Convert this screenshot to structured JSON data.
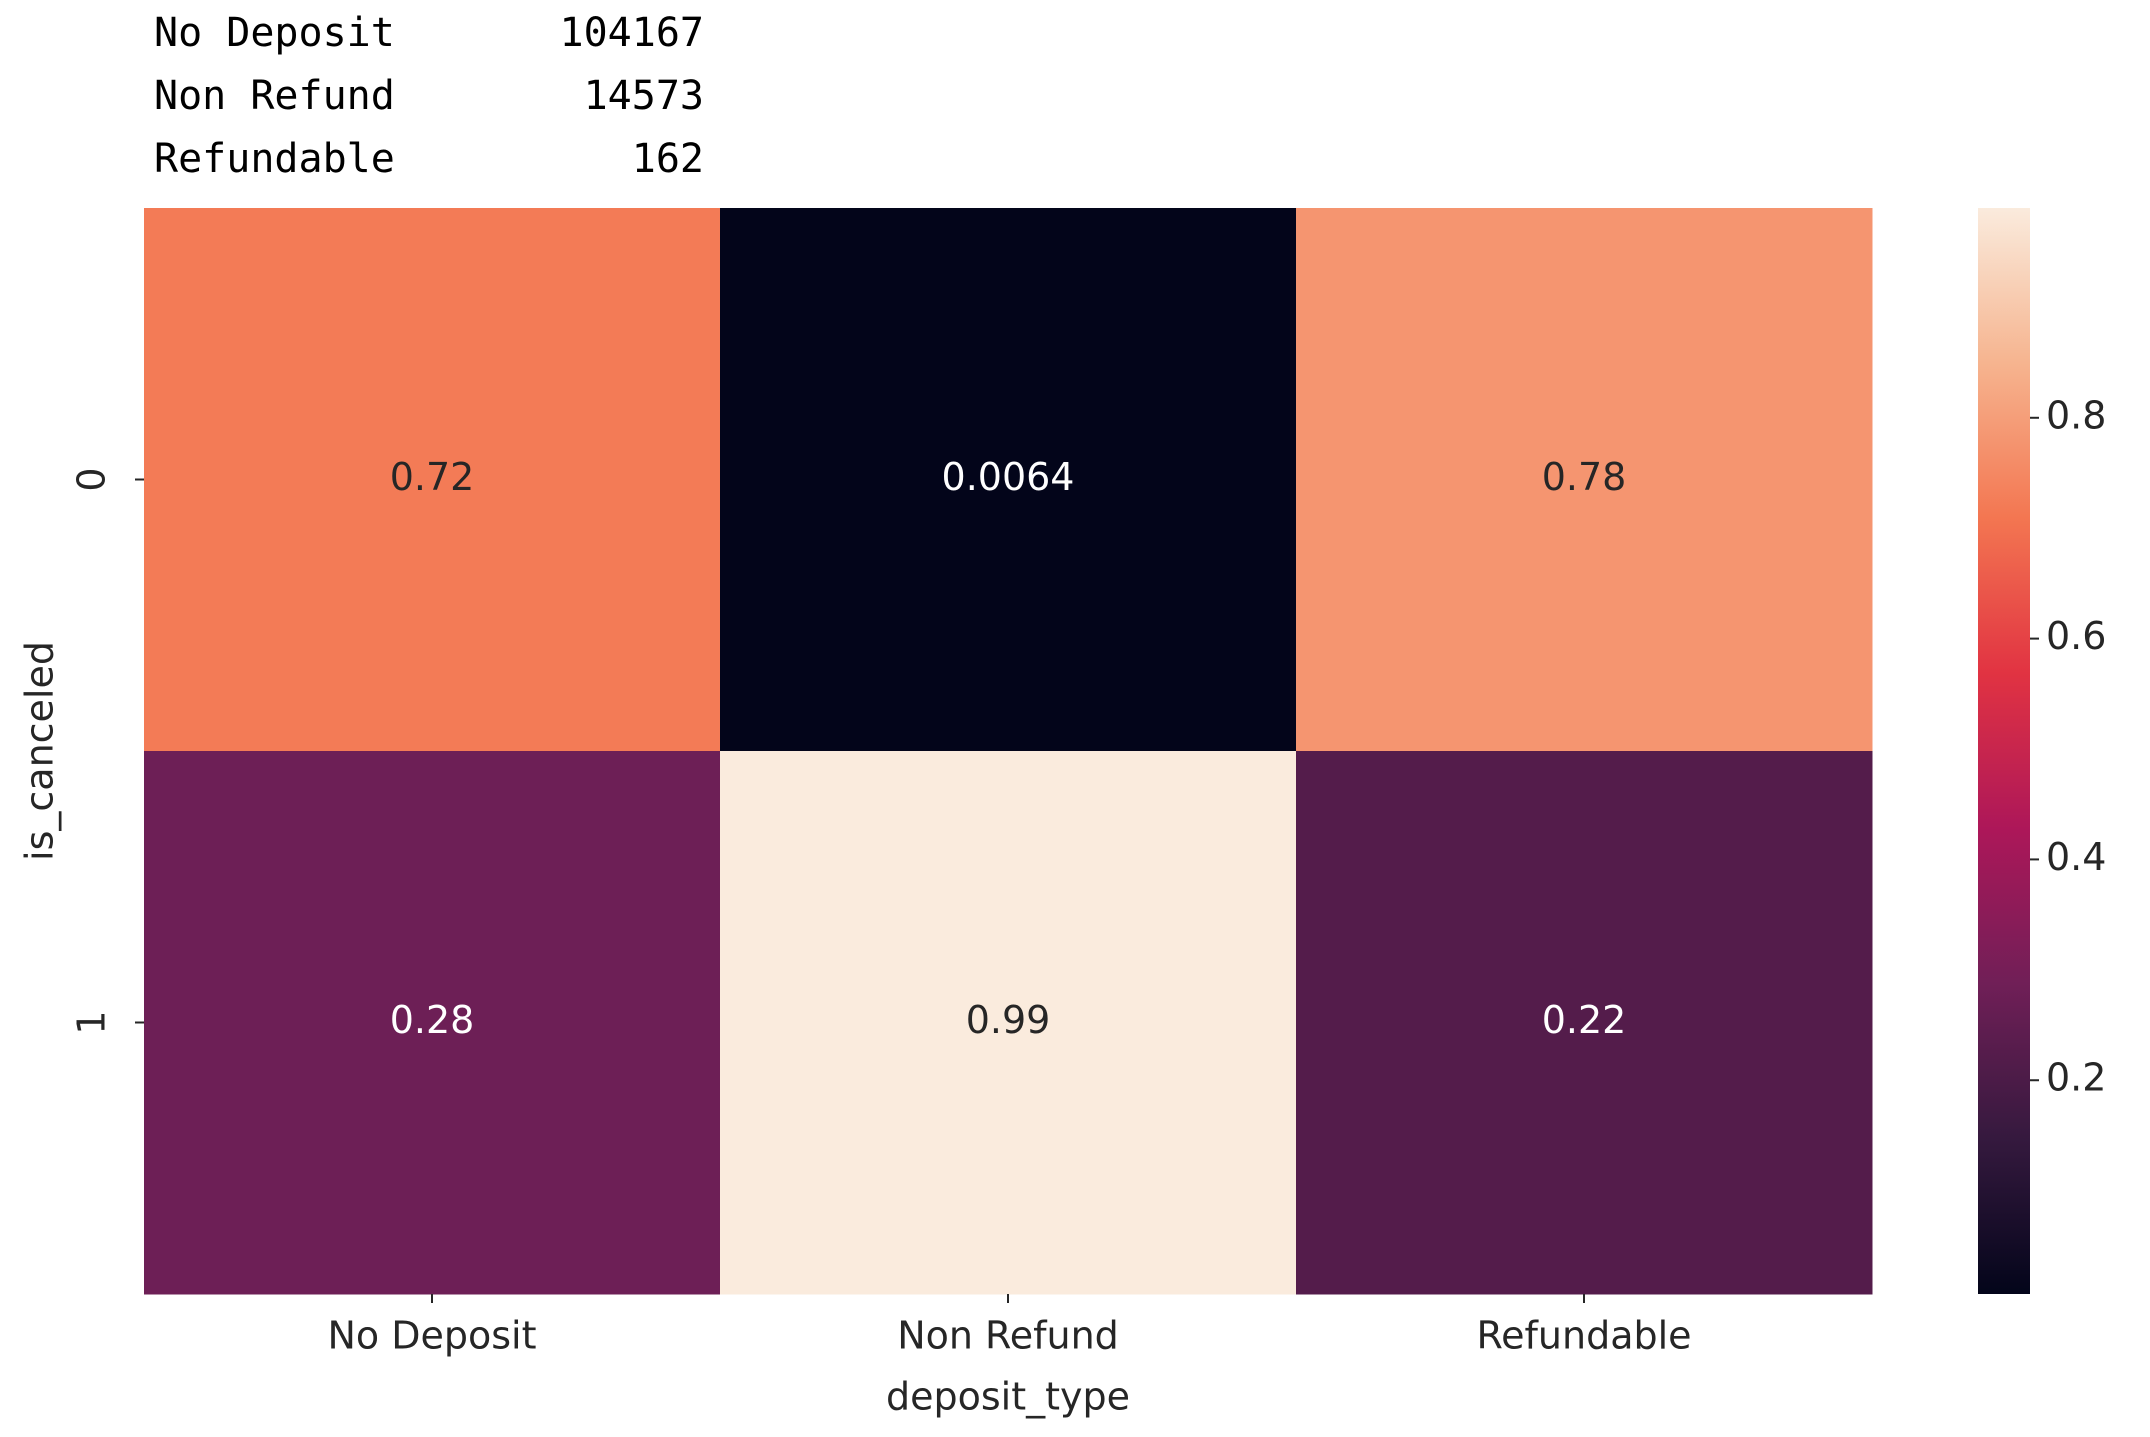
{
  "printout": {
    "rows": [
      [
        "No Deposit",
        "104167"
      ],
      [
        "Non Refund",
        "14573"
      ],
      [
        "Refundable",
        "162"
      ]
    ]
  },
  "chart_data": {
    "type": "heatmap",
    "x_label": "deposit_type",
    "y_label": "is_canceled",
    "x_categories": [
      "No Deposit",
      "Non Refund",
      "Refundable"
    ],
    "y_categories": [
      "0",
      "1"
    ],
    "values": [
      [
        0.72,
        0.0064,
        0.78
      ],
      [
        0.28,
        0.99,
        0.22
      ]
    ],
    "clim": [
      0.0064,
      0.99
    ],
    "cticks": [
      0.2,
      0.4,
      0.6,
      0.8
    ],
    "colormap": [
      "#03051a",
      "#35193e",
      "#701f57",
      "#ad1759",
      "#e13342",
      "#f37651",
      "#f6b48f",
      "#faebdd"
    ]
  }
}
